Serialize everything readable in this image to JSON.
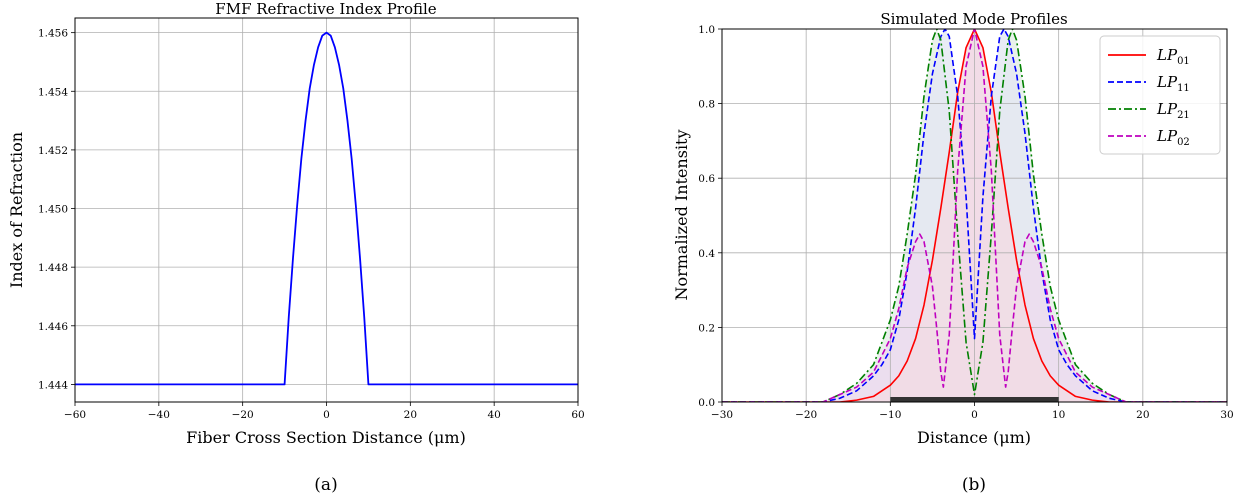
{
  "charts": [
    {
      "title": "FMF Refractive Index Profile",
      "xlabel": "Fiber Cross Section Distance (μm)",
      "ylabel": "Index of Refraction",
      "caption": "(a)"
    },
    {
      "title": "Simulated Mode Profiles",
      "xlabel": "Distance (μm)",
      "ylabel": "Normalized Intensity",
      "caption": "(b)",
      "legend": [
        {
          "base": "LP",
          "sub": "01"
        },
        {
          "base": "LP",
          "sub": "11"
        },
        {
          "base": "LP",
          "sub": "21"
        },
        {
          "base": "LP",
          "sub": "02"
        }
      ]
    }
  ],
  "chart_data": [
    {
      "type": "line",
      "title": "FMF Refractive Index Profile",
      "xlabel": "Fiber Cross Section Distance (μm)",
      "ylabel": "Index of Refraction",
      "xlim": [
        -60,
        60
      ],
      "ylim": [
        1.4434,
        1.4565
      ],
      "xticks": [
        -60,
        -40,
        -20,
        0,
        20,
        40,
        60
      ],
      "yticks": [
        1.444,
        1.446,
        1.448,
        1.45,
        1.452,
        1.454,
        1.456
      ],
      "grid": true,
      "series": [
        {
          "color": "#0000ff",
          "x": [
            -60,
            -10,
            -9,
            -8,
            -7,
            -6,
            -5,
            -4,
            -3,
            -2,
            -1,
            0,
            1,
            2,
            3,
            4,
            5,
            6,
            7,
            8,
            9,
            10,
            60
          ],
          "y": [
            1.444,
            1.444,
            1.4463,
            1.4483,
            1.4501,
            1.4517,
            1.453,
            1.4541,
            1.4549,
            1.4555,
            1.4559,
            1.456,
            1.4559,
            1.4555,
            1.4549,
            1.4541,
            1.453,
            1.4517,
            1.4501,
            1.4483,
            1.4463,
            1.444,
            1.444
          ]
        }
      ]
    },
    {
      "type": "line",
      "title": "Simulated Mode Profiles",
      "xlabel": "Distance (μm)",
      "ylabel": "Normalized Intensity",
      "xlim": [
        -30,
        30
      ],
      "ylim": [
        0,
        1
      ],
      "xticks": [
        -30,
        -20,
        -10,
        0,
        10,
        20,
        30
      ],
      "yticks": [
        0.0,
        0.2,
        0.4,
        0.6,
        0.8,
        1.0
      ],
      "grid": true,
      "legend_position": "top-right",
      "core_bar": {
        "x": [
          -10,
          10
        ],
        "color": "#333333"
      },
      "series": [
        {
          "name": "LP01",
          "color": "#ff0000",
          "dash": "solid",
          "fill": "#f3dbe4",
          "x": [
            -30,
            -16,
            -14,
            -12,
            -10,
            -9,
            -8,
            -7,
            -6,
            -5,
            -4,
            -3,
            -2,
            -1,
            0,
            1,
            2,
            3,
            4,
            5,
            6,
            7,
            8,
            9,
            10,
            12,
            14,
            16,
            30
          ],
          "y": [
            0.0,
            0.0,
            0.005,
            0.015,
            0.045,
            0.07,
            0.11,
            0.17,
            0.26,
            0.38,
            0.52,
            0.67,
            0.83,
            0.95,
            1.0,
            0.95,
            0.83,
            0.67,
            0.52,
            0.38,
            0.26,
            0.17,
            0.11,
            0.07,
            0.045,
            0.015,
            0.005,
            0.0,
            0.0
          ]
        },
        {
          "name": "LP11",
          "color": "#0000ff",
          "dash": "dashed",
          "fill": "#e3e7f3",
          "x": [
            -30,
            -18,
            -16,
            -14,
            -12,
            -11,
            -10,
            -9,
            -8,
            -7,
            -6,
            -5,
            -4,
            -3.5,
            -3,
            -2,
            -1,
            0,
            1,
            2,
            3,
            3.5,
            4,
            5,
            6,
            7,
            8,
            9,
            10,
            11,
            12,
            14,
            16,
            18,
            30
          ],
          "y": [
            0.0,
            0.0,
            0.01,
            0.03,
            0.07,
            0.1,
            0.14,
            0.22,
            0.35,
            0.52,
            0.72,
            0.88,
            0.98,
            1.0,
            0.98,
            0.82,
            0.55,
            0.17,
            0.55,
            0.82,
            0.98,
            1.0,
            0.98,
            0.88,
            0.72,
            0.52,
            0.35,
            0.22,
            0.14,
            0.1,
            0.07,
            0.03,
            0.01,
            0.0,
            0.0
          ]
        },
        {
          "name": "LP21",
          "color": "#008000",
          "dash": "dashdot",
          "fill": "#e3ede6",
          "x": [
            -30,
            -18,
            -16,
            -14,
            -12,
            -10,
            -9,
            -8,
            -7,
            -6,
            -5,
            -4.5,
            -4,
            -3,
            -2,
            -1,
            0,
            1,
            2,
            3,
            4,
            4.5,
            5,
            6,
            7,
            8,
            9,
            10,
            12,
            14,
            16,
            18,
            30
          ],
          "y": [
            0.0,
            0.0,
            0.02,
            0.05,
            0.1,
            0.22,
            0.31,
            0.45,
            0.61,
            0.82,
            0.97,
            1.0,
            0.97,
            0.78,
            0.45,
            0.16,
            0.02,
            0.16,
            0.45,
            0.78,
            0.97,
            1.0,
            0.97,
            0.82,
            0.61,
            0.45,
            0.31,
            0.22,
            0.1,
            0.05,
            0.02,
            0.0,
            0.0
          ]
        },
        {
          "name": "LP02",
          "color": "#bf00bf",
          "dash": "dashed",
          "fill": "#eedbef",
          "x": [
            -30,
            -18,
            -16,
            -14,
            -12,
            -10,
            -9,
            -8,
            -7,
            -6.5,
            -6,
            -5,
            -4.5,
            -4,
            -3.7,
            -3,
            -2,
            -1,
            0,
            1,
            2,
            3,
            3.7,
            4,
            4.5,
            5,
            6,
            6.5,
            7,
            8,
            9,
            10,
            12,
            14,
            16,
            18,
            30
          ],
          "y": [
            0.0,
            0.0,
            0.02,
            0.04,
            0.08,
            0.17,
            0.25,
            0.36,
            0.43,
            0.45,
            0.43,
            0.31,
            0.2,
            0.08,
            0.04,
            0.18,
            0.62,
            0.9,
            1.0,
            0.9,
            0.62,
            0.18,
            0.04,
            0.08,
            0.2,
            0.31,
            0.43,
            0.45,
            0.43,
            0.36,
            0.25,
            0.17,
            0.08,
            0.04,
            0.02,
            0.0,
            0.0
          ]
        }
      ]
    }
  ]
}
